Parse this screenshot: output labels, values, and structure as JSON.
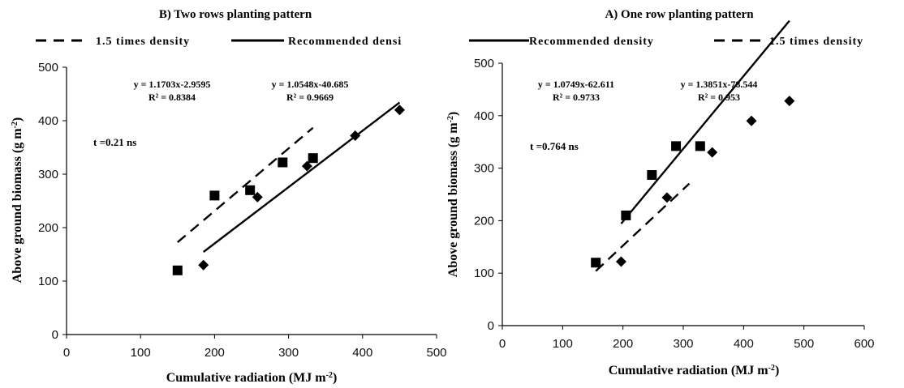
{
  "chart_data": [
    {
      "type": "scatter",
      "title": "B) Two rows planting pattern",
      "xlabel": "Cumulative radiation (MJ m-2)",
      "ylabel": "Above ground biomass (g m-2)",
      "xlim": [
        0,
        500
      ],
      "ylim": [
        0,
        500
      ],
      "xticks": [
        "0",
        "100",
        "200",
        "300",
        "400",
        "500"
      ],
      "yticks": [
        "0",
        "100",
        "200",
        "300",
        "400",
        "500"
      ],
      "legend": {
        "placement": "top",
        "entries": [
          "1.5 times density",
          "Recommended densi"
        ]
      },
      "series": [
        {
          "name": "1.5 times density",
          "marker": "square",
          "line_style": "dashed",
          "x": [
            150,
            200,
            248,
            292,
            333
          ],
          "y": [
            120,
            260,
            270,
            322,
            330
          ],
          "trendline": {
            "x": [
              150,
              333
            ],
            "equation": "y = 1.1703x-2.9595",
            "r2": "R² = 0.8384"
          }
        },
        {
          "name": "Recommended densi",
          "marker": "diamond",
          "line_style": "solid",
          "x": [
            185,
            258,
            325,
            390,
            450
          ],
          "y": [
            130,
            257,
            315,
            372,
            420
          ],
          "trendline": {
            "x": [
              185,
              450
            ],
            "equation": "y = 1.0548x-40.685",
            "r2": "R² = 0.9669"
          }
        }
      ],
      "annotation": "t =0.21 ns"
    },
    {
      "type": "scatter",
      "title": "A) One row planting pattern",
      "xlabel": "Cumulative radiation (MJ m-2)",
      "ylabel": "Above ground biomass (g m-2)",
      "xlim": [
        0,
        600
      ],
      "ylim": [
        0,
        500
      ],
      "xticks": [
        "0",
        "100",
        "200",
        "300",
        "400",
        "500",
        "600"
      ],
      "yticks": [
        "0",
        "100",
        "200",
        "300",
        "400",
        "500"
      ],
      "legend": {
        "placement": "top",
        "entries": [
          "Recommended density",
          "1.5 times density"
        ]
      },
      "series": [
        {
          "name": "1.5 times density",
          "marker": "square",
          "line_style": "dashed",
          "x": [
            155,
            205,
            248,
            288,
            328
          ],
          "y": [
            120,
            210,
            287,
            342,
            342
          ],
          "trendline": {
            "x": [
              155,
              310
            ],
            "equation": "y = 1.0749x-62.611",
            "r2": "R² = 0.9733"
          }
        },
        {
          "name": "Recommended density",
          "marker": "diamond",
          "line_style": "solid",
          "x": [
            197,
            273,
            348,
            413,
            476
          ],
          "y": [
            122,
            244,
            330,
            390,
            428
          ],
          "trendline": {
            "x": [
              197,
              476
            ],
            "equation": "y = 1.3851x-78.544",
            "r2": "R² = 0.953"
          }
        }
      ],
      "annotation": "t =0.764 ns"
    }
  ]
}
